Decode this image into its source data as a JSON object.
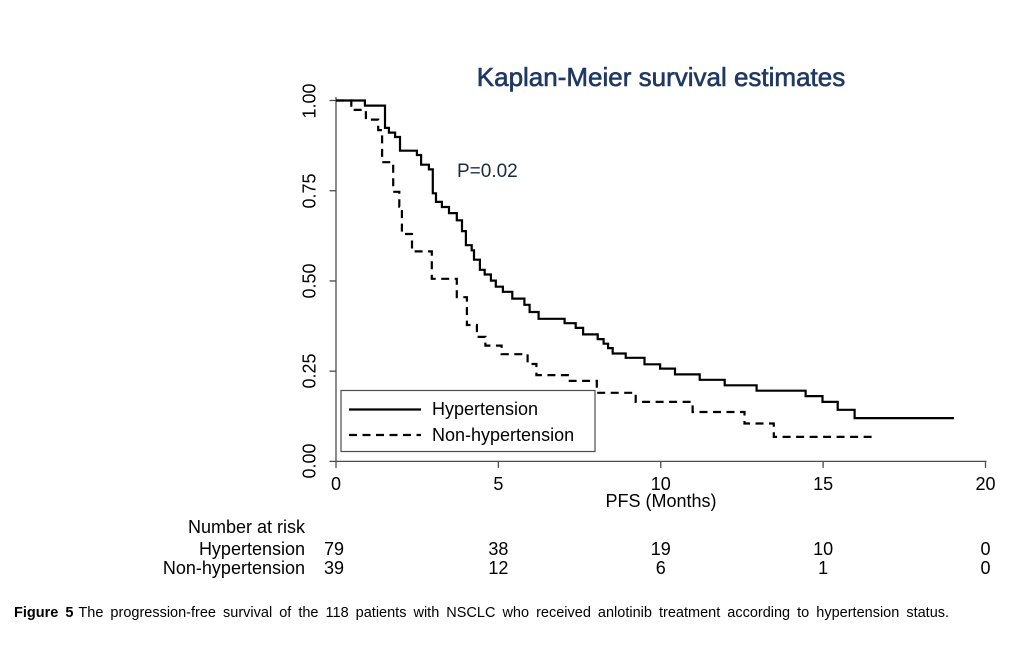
{
  "title": "Kaplan-Meier survival estimates",
  "chart_data": {
    "type": "line",
    "subtype": "kaplan-meier-step",
    "title": "Kaplan-Meier survival estimates",
    "annotation": "P=0.02",
    "xlabel": "PFS (Months)",
    "ylabel": "",
    "xlim": [
      0,
      20
    ],
    "ylim": [
      0.0,
      1.0
    ],
    "xticks": [
      0,
      5,
      10,
      15,
      20
    ],
    "ytick_labels": [
      "0.00",
      "0.25",
      "0.50",
      "0.75",
      "1.00"
    ],
    "ytick_values": [
      0.0,
      0.25,
      0.5,
      0.75,
      1.0
    ],
    "grid": false,
    "legend_position": "lower-left",
    "series": [
      {
        "name": "Hypertension",
        "line_style": "solid",
        "color": "#000000",
        "points": [
          [
            0.0,
            1.0
          ],
          [
            0.89,
            0.986
          ],
          [
            1.51,
            0.924
          ],
          [
            1.63,
            0.911
          ],
          [
            1.82,
            0.899
          ],
          [
            1.97,
            0.861
          ],
          [
            2.49,
            0.849
          ],
          [
            2.62,
            0.822
          ],
          [
            2.86,
            0.809
          ],
          [
            2.98,
            0.743
          ],
          [
            3.08,
            0.719
          ],
          [
            3.26,
            0.705
          ],
          [
            3.48,
            0.688
          ],
          [
            3.72,
            0.668
          ],
          [
            3.88,
            0.638
          ],
          [
            4.0,
            0.599
          ],
          [
            4.18,
            0.585
          ],
          [
            4.25,
            0.559
          ],
          [
            4.43,
            0.531
          ],
          [
            4.58,
            0.518
          ],
          [
            4.77,
            0.501
          ],
          [
            4.92,
            0.484
          ],
          [
            5.14,
            0.47
          ],
          [
            5.43,
            0.451
          ],
          [
            5.8,
            0.434
          ],
          [
            5.96,
            0.414
          ],
          [
            6.24,
            0.395
          ],
          [
            7.04,
            0.383
          ],
          [
            7.38,
            0.37
          ],
          [
            7.61,
            0.352
          ],
          [
            8.06,
            0.339
          ],
          [
            8.24,
            0.326
          ],
          [
            8.38,
            0.314
          ],
          [
            8.52,
            0.299
          ],
          [
            8.92,
            0.287
          ],
          [
            9.5,
            0.269
          ],
          [
            9.98,
            0.257
          ],
          [
            10.44,
            0.241
          ],
          [
            11.2,
            0.226
          ],
          [
            11.97,
            0.211
          ],
          [
            12.95,
            0.196
          ],
          [
            14.46,
            0.181
          ],
          [
            14.98,
            0.165
          ],
          [
            15.45,
            0.143
          ],
          [
            15.97,
            0.12
          ]
        ],
        "end_time": 19.03
      },
      {
        "name": "Non-hypertension",
        "line_style": "dashed",
        "color": "#000000",
        "points": [
          [
            0.0,
            1.0
          ],
          [
            0.47,
            0.974
          ],
          [
            0.92,
            0.947
          ],
          [
            1.3,
            0.918
          ],
          [
            1.42,
            0.829
          ],
          [
            1.76,
            0.747
          ],
          [
            1.95,
            0.706
          ],
          [
            2.03,
            0.63
          ],
          [
            2.34,
            0.582
          ],
          [
            2.95,
            0.506
          ],
          [
            3.72,
            0.455
          ],
          [
            4.03,
            0.378
          ],
          [
            4.34,
            0.345
          ],
          [
            4.6,
            0.321
          ],
          [
            5.1,
            0.297
          ],
          [
            5.9,
            0.27
          ],
          [
            6.17,
            0.239
          ],
          [
            7.2,
            0.223
          ],
          [
            8.03,
            0.19
          ],
          [
            9.23,
            0.165
          ],
          [
            10.98,
            0.137
          ],
          [
            12.58,
            0.105
          ],
          [
            13.48,
            0.068
          ]
        ],
        "end_time": 16.5
      }
    ]
  },
  "risk_table": {
    "header": "Number at risk",
    "times": [
      0,
      5,
      10,
      15,
      20
    ],
    "rows": [
      {
        "label": "Hypertension",
        "counts": [
          "79",
          "38",
          "19",
          "10",
          "0"
        ]
      },
      {
        "label": "Non-hypertension",
        "counts": [
          "39",
          "12",
          "6",
          "1",
          "0"
        ]
      }
    ]
  },
  "caption": {
    "label": "Figure 5",
    "text": "The progression-free survival of the 118 patients with NSCLC who received anlotinib treatment according to hypertension status."
  },
  "colors": {
    "background": "#ffffff",
    "title": "#1f3864",
    "annotation": "#243352",
    "axis": "#4d4d4d",
    "curve": "#000000",
    "text": "#000000"
  }
}
